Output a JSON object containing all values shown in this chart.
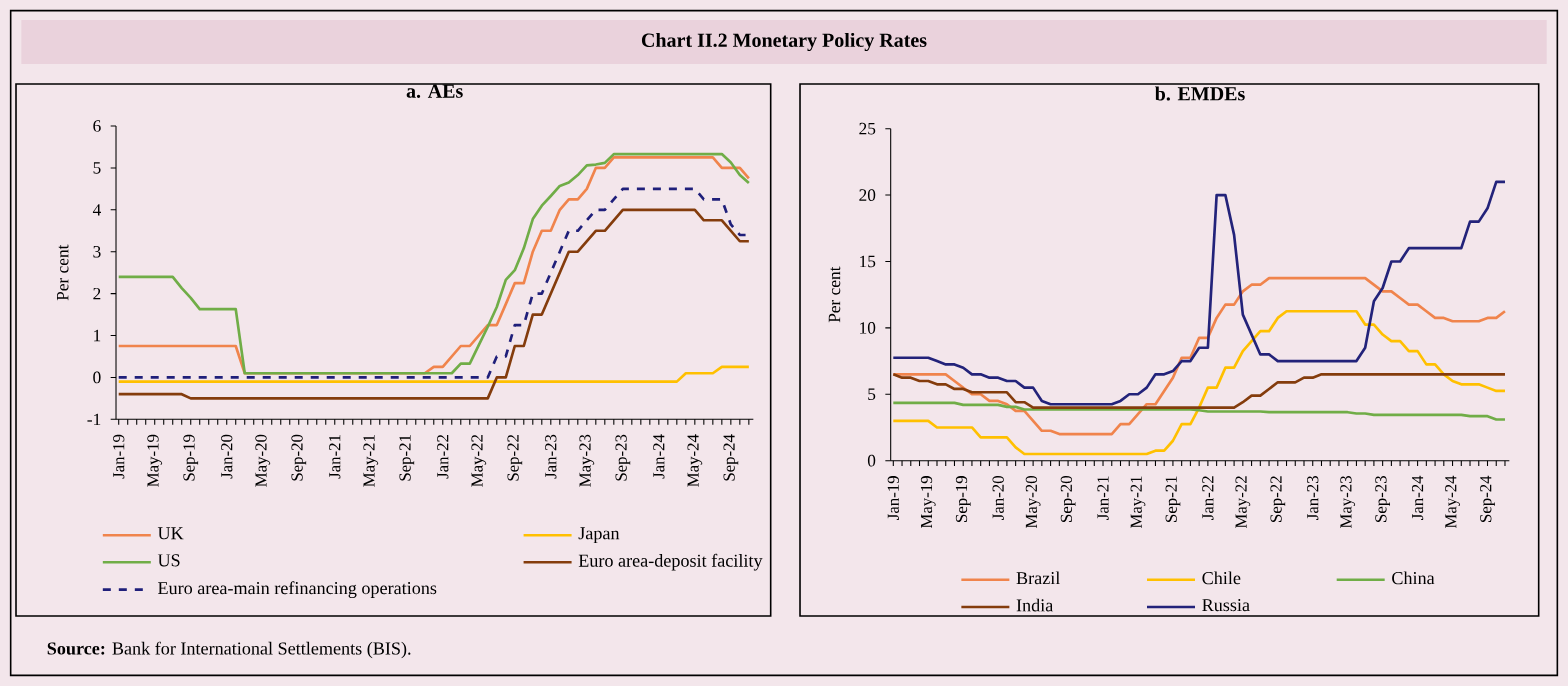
{
  "chart_data": [
    {
      "type": "other",
      "title": "Chart II.2 Monetary Policy Rates",
      "annotations": [
        "**Source:** Bank for International Settlements (BIS)."
      ]
    },
    {
      "type": "line",
      "title": "a. AEs",
      "ylabel": "Per cent",
      "ylim": [
        -1,
        6
      ],
      "yticks": [
        -1,
        0,
        1,
        2,
        3,
        4,
        5,
        6
      ],
      "legend": "bottom",
      "grid": false,
      "categories": [
        "Jan-19",
        null,
        null,
        null,
        "May-19",
        null,
        null,
        null,
        "Sep-19",
        null,
        null,
        null,
        "Jan-20",
        null,
        null,
        null,
        "May-20",
        null,
        null,
        null,
        "Sep-20",
        null,
        null,
        null,
        "Jan-21",
        null,
        null,
        null,
        "May-21",
        null,
        null,
        null,
        "Sep-21",
        null,
        null,
        null,
        "Jan-22",
        null,
        null,
        null,
        "May-22",
        null,
        null,
        null,
        "Sep-22",
        null,
        null,
        null,
        "Jan-23",
        null,
        null,
        null,
        "May-23",
        null,
        null,
        null,
        "Sep-23",
        null,
        null,
        null,
        "Jan-24",
        null,
        null,
        null,
        "May-24",
        null,
        null,
        null,
        "Sep-24",
        null,
        null
      ],
      "series": [
        {
          "name": "UK",
          "color": "#f0844c",
          "values": [
            0.75,
            0.75,
            0.75,
            0.75,
            0.75,
            0.75,
            0.75,
            0.75,
            0.75,
            0.75,
            0.75,
            0.75,
            0.75,
            0.75,
            0.1,
            0.1,
            0.1,
            0.1,
            0.1,
            0.1,
            0.1,
            0.1,
            0.1,
            0.1,
            0.1,
            0.1,
            0.1,
            0.1,
            0.1,
            0.1,
            0.1,
            0.1,
            0.1,
            0.1,
            0.1,
            0.25,
            0.25,
            0.5,
            0.75,
            0.75,
            1.0,
            1.25,
            1.25,
            1.75,
            2.25,
            2.25,
            3.0,
            3.5,
            3.5,
            4.0,
            4.25,
            4.25,
            4.5,
            5.0,
            5.0,
            5.25,
            5.25,
            5.25,
            5.25,
            5.25,
            5.25,
            5.25,
            5.25,
            5.25,
            5.25,
            5.25,
            5.25,
            5.0,
            5.0,
            5.0,
            4.75
          ]
        },
        {
          "name": "Japan",
          "color": "#ffc000",
          "values": [
            -0.1,
            -0.1,
            -0.1,
            -0.1,
            -0.1,
            -0.1,
            -0.1,
            -0.1,
            -0.1,
            -0.1,
            -0.1,
            -0.1,
            -0.1,
            -0.1,
            -0.1,
            -0.1,
            -0.1,
            -0.1,
            -0.1,
            -0.1,
            -0.1,
            -0.1,
            -0.1,
            -0.1,
            -0.1,
            -0.1,
            -0.1,
            -0.1,
            -0.1,
            -0.1,
            -0.1,
            -0.1,
            -0.1,
            -0.1,
            -0.1,
            -0.1,
            -0.1,
            -0.1,
            -0.1,
            -0.1,
            -0.1,
            -0.1,
            -0.1,
            -0.1,
            -0.1,
            -0.1,
            -0.1,
            -0.1,
            -0.1,
            -0.1,
            -0.1,
            -0.1,
            -0.1,
            -0.1,
            -0.1,
            -0.1,
            -0.1,
            -0.1,
            -0.1,
            -0.1,
            -0.1,
            -0.1,
            -0.1,
            0.1,
            0.1,
            0.1,
            0.1,
            0.25,
            0.25,
            0.25,
            0.25
          ]
        },
        {
          "name": "US",
          "color": "#70ad47",
          "values": [
            2.4,
            2.4,
            2.4,
            2.4,
            2.4,
            2.4,
            2.4,
            2.13,
            1.9,
            1.63,
            1.63,
            1.63,
            1.63,
            1.63,
            0.1,
            0.1,
            0.1,
            0.1,
            0.1,
            0.1,
            0.1,
            0.1,
            0.1,
            0.1,
            0.1,
            0.1,
            0.1,
            0.1,
            0.1,
            0.1,
            0.1,
            0.1,
            0.1,
            0.1,
            0.1,
            0.1,
            0.1,
            0.1,
            0.33,
            0.33,
            0.77,
            1.21,
            1.68,
            2.33,
            2.56,
            3.08,
            3.78,
            4.1,
            4.33,
            4.57,
            4.65,
            4.83,
            5.06,
            5.08,
            5.12,
            5.33,
            5.33,
            5.33,
            5.33,
            5.33,
            5.33,
            5.33,
            5.33,
            5.33,
            5.33,
            5.33,
            5.33,
            5.33,
            5.13,
            4.83,
            4.64
          ]
        },
        {
          "name": "Euro area-deposit facility",
          "color": "#843c0c",
          "values": [
            -0.4,
            -0.4,
            -0.4,
            -0.4,
            -0.4,
            -0.4,
            -0.4,
            -0.4,
            -0.5,
            -0.5,
            -0.5,
            -0.5,
            -0.5,
            -0.5,
            -0.5,
            -0.5,
            -0.5,
            -0.5,
            -0.5,
            -0.5,
            -0.5,
            -0.5,
            -0.5,
            -0.5,
            -0.5,
            -0.5,
            -0.5,
            -0.5,
            -0.5,
            -0.5,
            -0.5,
            -0.5,
            -0.5,
            -0.5,
            -0.5,
            -0.5,
            -0.5,
            -0.5,
            -0.5,
            -0.5,
            -0.5,
            -0.5,
            0,
            0,
            0.75,
            0.75,
            1.5,
            1.5,
            2.0,
            2.5,
            3.0,
            3.0,
            3.25,
            3.5,
            3.5,
            3.75,
            4.0,
            4.0,
            4.0,
            4.0,
            4.0,
            4.0,
            4.0,
            4.0,
            4.0,
            3.75,
            3.75,
            3.75,
            3.5,
            3.25,
            3.25
          ]
        },
        {
          "name": "Euro area-main refinancing operations",
          "color": "#1f1f7a",
          "line_style": "dashed",
          "values": [
            0,
            0,
            0,
            0,
            0,
            0,
            0,
            0,
            0,
            0,
            0,
            0,
            0,
            0,
            0,
            0,
            0,
            0,
            0,
            0,
            0,
            0,
            0,
            0,
            0,
            0,
            0,
            0,
            0,
            0,
            0,
            0,
            0,
            0,
            0,
            0,
            0,
            0,
            0,
            0,
            0,
            0,
            0.5,
            0.5,
            1.25,
            1.25,
            2.0,
            2.0,
            2.5,
            3.0,
            3.5,
            3.5,
            3.75,
            4.0,
            4.0,
            4.25,
            4.5,
            4.5,
            4.5,
            4.5,
            4.5,
            4.5,
            4.5,
            4.5,
            4.5,
            4.25,
            4.25,
            4.25,
            3.65,
            3.4,
            3.4
          ]
        }
      ]
    },
    {
      "type": "line",
      "title": "b. EMDEs",
      "ylabel": "Per cent",
      "ylim": [
        0,
        25
      ],
      "yticks": [
        0,
        5,
        10,
        15,
        20,
        25
      ],
      "legend": "bottom",
      "grid": false,
      "categories": [
        "Jan-19",
        null,
        null,
        null,
        "May-19",
        null,
        null,
        null,
        "Sep-19",
        null,
        null,
        null,
        "Jan-20",
        null,
        null,
        null,
        "May-20",
        null,
        null,
        null,
        "Sep-20",
        null,
        null,
        null,
        "Jan-21",
        null,
        null,
        null,
        "May-21",
        null,
        null,
        null,
        "Sep-21",
        null,
        null,
        null,
        "Jan-22",
        null,
        null,
        null,
        "May-22",
        null,
        null,
        null,
        "Sep-22",
        null,
        null,
        null,
        "Jan-23",
        null,
        null,
        null,
        "May-23",
        null,
        null,
        null,
        "Sep-23",
        null,
        null,
        null,
        "Jan-24",
        null,
        null,
        null,
        "May-24",
        null,
        null,
        null,
        "Sep-24",
        null,
        null
      ],
      "series": [
        {
          "name": "Brazil",
          "color": "#f0844c",
          "values": [
            6.5,
            6.5,
            6.5,
            6.5,
            6.5,
            6.5,
            6.5,
            6.0,
            5.5,
            5.0,
            5.0,
            4.5,
            4.5,
            4.25,
            3.75,
            3.75,
            3.0,
            2.25,
            2.25,
            2.0,
            2.0,
            2.0,
            2.0,
            2.0,
            2.0,
            2.0,
            2.75,
            2.75,
            3.5,
            4.25,
            4.25,
            5.25,
            6.25,
            7.75,
            7.75,
            9.25,
            9.25,
            10.75,
            11.75,
            11.75,
            12.75,
            13.25,
            13.25,
            13.75,
            13.75,
            13.75,
            13.75,
            13.75,
            13.75,
            13.75,
            13.75,
            13.75,
            13.75,
            13.75,
            13.75,
            13.25,
            12.75,
            12.75,
            12.25,
            11.75,
            11.75,
            11.25,
            10.75,
            10.75,
            10.5,
            10.5,
            10.5,
            10.5,
            10.75,
            10.75,
            11.25
          ]
        },
        {
          "name": "Chile",
          "color": "#ffc000",
          "values": [
            3.0,
            3.0,
            3.0,
            3.0,
            3.0,
            2.5,
            2.5,
            2.5,
            2.5,
            2.5,
            1.75,
            1.75,
            1.75,
            1.75,
            1.0,
            0.5,
            0.5,
            0.5,
            0.5,
            0.5,
            0.5,
            0.5,
            0.5,
            0.5,
            0.5,
            0.5,
            0.5,
            0.5,
            0.5,
            0.5,
            0.75,
            0.75,
            1.5,
            2.75,
            2.75,
            4.0,
            5.5,
            5.5,
            7.0,
            7.0,
            8.25,
            9.0,
            9.75,
            9.75,
            10.75,
            11.25,
            11.25,
            11.25,
            11.25,
            11.25,
            11.25,
            11.25,
            11.25,
            11.25,
            10.25,
            10.25,
            9.5,
            9.0,
            9.0,
            8.25,
            8.25,
            7.25,
            7.25,
            6.5,
            6.0,
            5.75,
            5.75,
            5.75,
            5.5,
            5.25,
            5.25
          ]
        },
        {
          "name": "China",
          "color": "#70ad47",
          "values": [
            4.35,
            4.35,
            4.35,
            4.35,
            4.35,
            4.35,
            4.35,
            4.35,
            4.2,
            4.2,
            4.2,
            4.2,
            4.2,
            4.05,
            4.05,
            3.85,
            3.85,
            3.85,
            3.85,
            3.85,
            3.85,
            3.85,
            3.85,
            3.85,
            3.85,
            3.85,
            3.85,
            3.85,
            3.85,
            3.85,
            3.85,
            3.85,
            3.85,
            3.85,
            3.85,
            3.8,
            3.7,
            3.7,
            3.7,
            3.7,
            3.7,
            3.7,
            3.7,
            3.65,
            3.65,
            3.65,
            3.65,
            3.65,
            3.65,
            3.65,
            3.65,
            3.65,
            3.65,
            3.55,
            3.55,
            3.45,
            3.45,
            3.45,
            3.45,
            3.45,
            3.45,
            3.45,
            3.45,
            3.45,
            3.45,
            3.45,
            3.35,
            3.35,
            3.35,
            3.1,
            3.1
          ]
        },
        {
          "name": "India",
          "color": "#843c0c",
          "values": [
            6.5,
            6.25,
            6.25,
            6.0,
            6.0,
            5.75,
            5.75,
            5.4,
            5.4,
            5.15,
            5.15,
            5.15,
            5.15,
            5.15,
            4.4,
            4.4,
            4.0,
            4.0,
            4.0,
            4.0,
            4.0,
            4.0,
            4.0,
            4.0,
            4.0,
            4.0,
            4.0,
            4.0,
            4.0,
            4.0,
            4.0,
            4.0,
            4.0,
            4.0,
            4.0,
            4.0,
            4.0,
            4.0,
            4.0,
            4.0,
            4.4,
            4.9,
            4.9,
            5.4,
            5.9,
            5.9,
            5.9,
            6.25,
            6.25,
            6.5,
            6.5,
            6.5,
            6.5,
            6.5,
            6.5,
            6.5,
            6.5,
            6.5,
            6.5,
            6.5,
            6.5,
            6.5,
            6.5,
            6.5,
            6.5,
            6.5,
            6.5,
            6.5,
            6.5,
            6.5,
            6.5
          ]
        },
        {
          "name": "Russia",
          "color": "#23237a",
          "values": [
            7.75,
            7.75,
            7.75,
            7.75,
            7.75,
            7.5,
            7.25,
            7.25,
            7.0,
            6.5,
            6.5,
            6.25,
            6.25,
            6.0,
            6.0,
            5.5,
            5.5,
            4.5,
            4.25,
            4.25,
            4.25,
            4.25,
            4.25,
            4.25,
            4.25,
            4.25,
            4.5,
            5.0,
            5.0,
            5.5,
            6.5,
            6.5,
            6.75,
            7.5,
            7.5,
            8.5,
            8.5,
            20,
            20,
            17,
            11,
            9.5,
            8.0,
            8.0,
            7.5,
            7.5,
            7.5,
            7.5,
            7.5,
            7.5,
            7.5,
            7.5,
            7.5,
            7.5,
            8.5,
            12,
            13,
            15,
            15,
            16,
            16,
            16,
            16,
            16,
            16,
            16,
            18,
            18,
            19,
            21,
            21
          ]
        }
      ]
    }
  ]
}
